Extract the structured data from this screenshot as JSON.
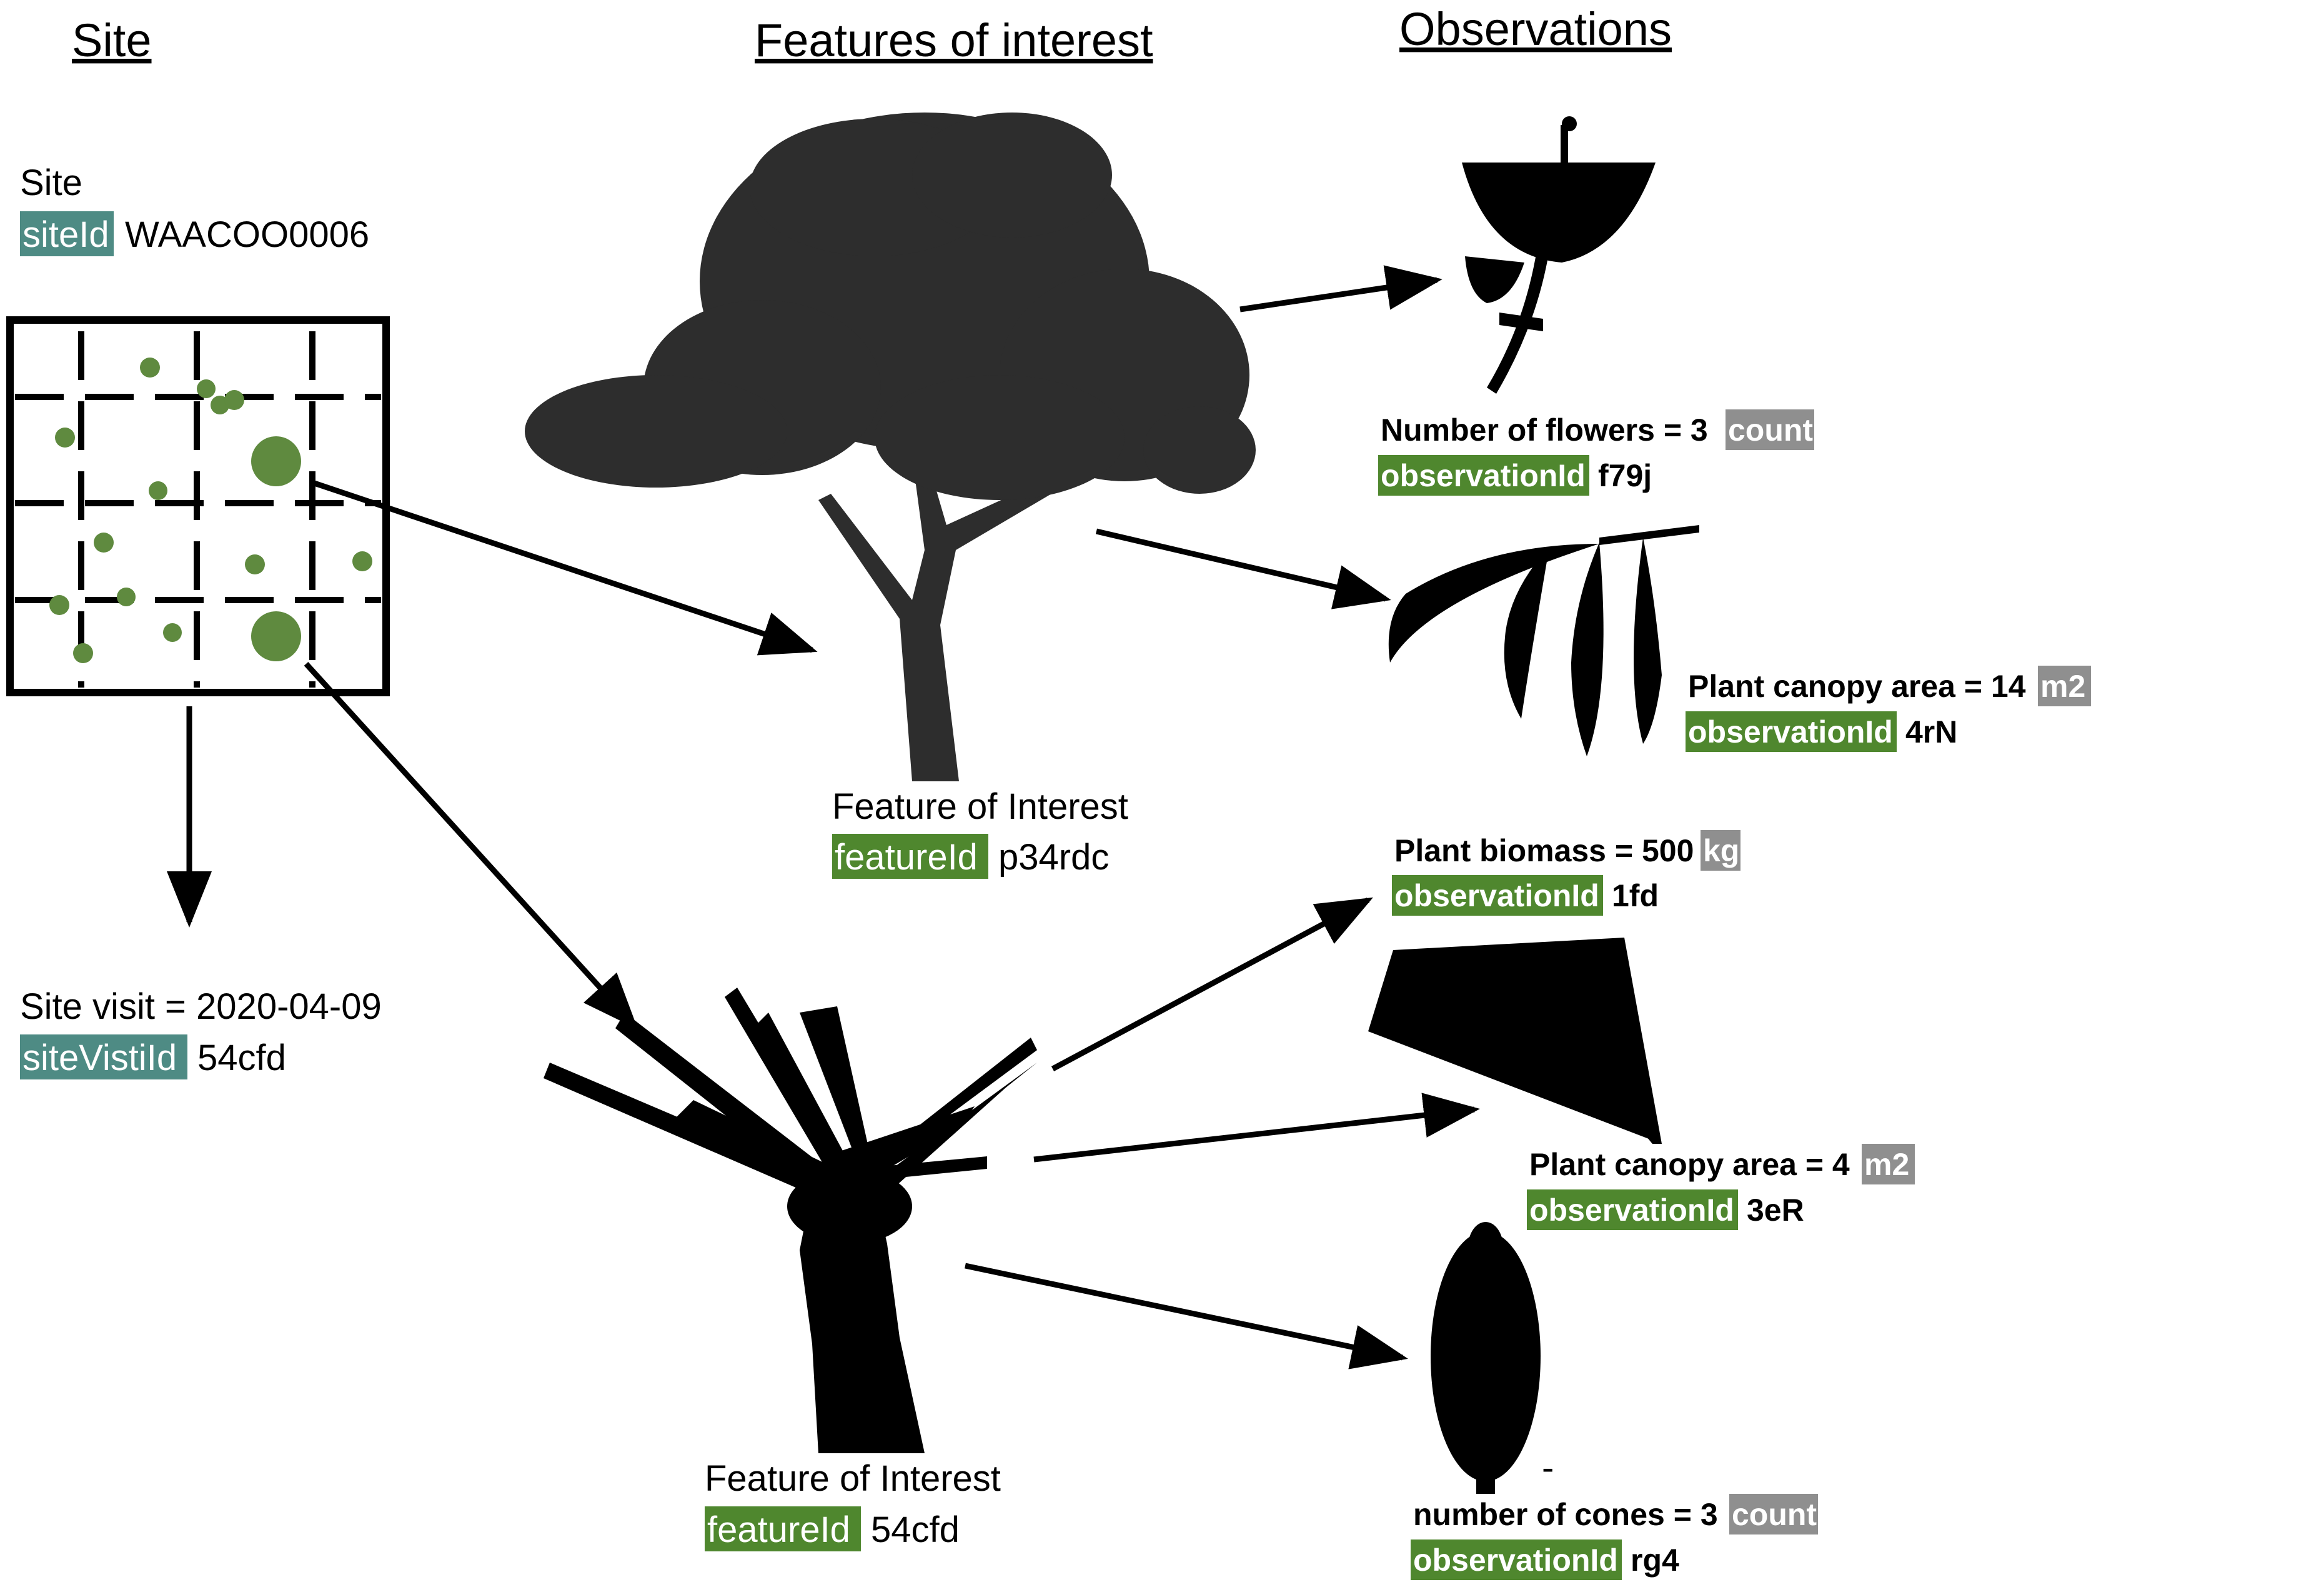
{
  "headers": {
    "site": "Site",
    "features": "Features of interest",
    "observations": "Observations"
  },
  "site": {
    "label": "Site",
    "id_key": "siteId",
    "id_value": "WAACOO0006"
  },
  "site_visit": {
    "label": "Site visit = 2020-04-09",
    "id_key": "siteVistiId",
    "id_value": "54cfd"
  },
  "features": [
    {
      "label": "Feature of Interest",
      "id_key": "featureId",
      "id_value": "p34rdc"
    },
    {
      "label": "Feature of Interest",
      "id_key": "featureId",
      "id_value": "54cfd"
    }
  ],
  "observations": [
    {
      "text": "Number of flowers = 3",
      "unit": "count",
      "id_key": "observationId",
      "id_value": "f79j"
    },
    {
      "text": "Plant canopy area = 14",
      "unit": "m2",
      "id_key": "observationId",
      "id_value": "4rN"
    },
    {
      "text": "Plant biomass = 500",
      "unit": "kg",
      "id_key": "observationId",
      "id_value": "1fd"
    },
    {
      "text": "Plant canopy area = 4",
      "unit": "m2",
      "id_key": "observationId",
      "id_value": "3eR"
    },
    {
      "text": "number of cones = 3",
      "unit": "count",
      "id_key": "observationId",
      "id_value": "rg4"
    }
  ],
  "stray_mark": "-",
  "colors": {
    "site_tag": "#4e8b84",
    "id_tag": "#4f872e",
    "unit_tag": "#8f8f8f",
    "plot_dot": "#5f8a3f",
    "silhouette": "#000000",
    "tree": "#2d2d2d"
  }
}
